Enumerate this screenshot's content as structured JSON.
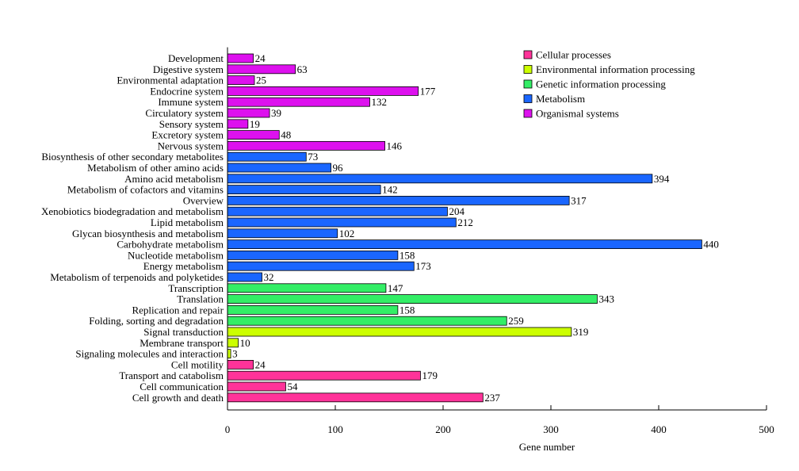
{
  "chart_data": {
    "type": "bar",
    "orientation": "horizontal",
    "xlabel": "Gene number",
    "xlim": [
      0,
      500
    ],
    "xticks": [
      0,
      100,
      200,
      300,
      400,
      500
    ],
    "grid": false,
    "legend_position": "top-right",
    "categories": [
      {
        "label": "Development",
        "value": 24,
        "group": "Organismal systems"
      },
      {
        "label": "Digestive system",
        "value": 63,
        "group": "Organismal systems"
      },
      {
        "label": "Environmental adaptation",
        "value": 25,
        "group": "Organismal systems"
      },
      {
        "label": "Endocrine system",
        "value": 177,
        "group": "Organismal systems"
      },
      {
        "label": "Immune system",
        "value": 132,
        "group": "Organismal systems"
      },
      {
        "label": "Circulatory system",
        "value": 39,
        "group": "Organismal systems"
      },
      {
        "label": "Sensory system",
        "value": 19,
        "group": "Organismal systems"
      },
      {
        "label": "Excretory system",
        "value": 48,
        "group": "Organismal systems"
      },
      {
        "label": "Nervous system",
        "value": 146,
        "group": "Organismal systems"
      },
      {
        "label": "Biosynthesis of other secondary metabolites",
        "value": 73,
        "group": "Metabolism"
      },
      {
        "label": "Metabolism of other amino acids",
        "value": 96,
        "group": "Metabolism"
      },
      {
        "label": "Amino acid metabolism",
        "value": 394,
        "group": "Metabolism"
      },
      {
        "label": "Metabolism of cofactors and vitamins",
        "value": 142,
        "group": "Metabolism"
      },
      {
        "label": "Overview",
        "value": 317,
        "group": "Metabolism"
      },
      {
        "label": "Xenobiotics biodegradation and metabolism",
        "value": 204,
        "group": "Metabolism"
      },
      {
        "label": "Lipid metabolism",
        "value": 212,
        "group": "Metabolism"
      },
      {
        "label": "Glycan biosynthesis and metabolism",
        "value": 102,
        "group": "Metabolism"
      },
      {
        "label": "Carbohydrate metabolism",
        "value": 440,
        "group": "Metabolism"
      },
      {
        "label": "Nucleotide metabolism",
        "value": 158,
        "group": "Metabolism"
      },
      {
        "label": "Energy metabolism",
        "value": 173,
        "group": "Metabolism"
      },
      {
        "label": "Metabolism of terpenoids and polyketides",
        "value": 32,
        "group": "Metabolism"
      },
      {
        "label": "Transcription",
        "value": 147,
        "group": "Genetic information processing"
      },
      {
        "label": "Translation",
        "value": 343,
        "group": "Genetic information processing"
      },
      {
        "label": "Replication and repair",
        "value": 158,
        "group": "Genetic information processing"
      },
      {
        "label": "Folding, sorting and degradation",
        "value": 259,
        "group": "Genetic information processing"
      },
      {
        "label": "Signal transduction",
        "value": 319,
        "group": "Environmental information processing"
      },
      {
        "label": "Membrane transport",
        "value": 10,
        "group": "Environmental information processing"
      },
      {
        "label": "Signaling molecules and interaction",
        "value": 3,
        "group": "Environmental information processing"
      },
      {
        "label": "Cell motility",
        "value": 24,
        "group": "Cellular processes"
      },
      {
        "label": "Transport and catabolism",
        "value": 179,
        "group": "Cellular processes"
      },
      {
        "label": "Cell communication",
        "value": 54,
        "group": "Cellular processes"
      },
      {
        "label": "Cell growth and death",
        "value": 237,
        "group": "Cellular processes"
      }
    ],
    "legend": [
      {
        "name": "Cellular processes",
        "color": "#ff3399"
      },
      {
        "name": "Environmental information processing",
        "color": "#ccff00"
      },
      {
        "name": "Genetic information processing",
        "color": "#33ee66"
      },
      {
        "name": "Metabolism",
        "color": "#1a66ff"
      },
      {
        "name": "Organismal systems",
        "color": "#dd11ee"
      }
    ]
  }
}
